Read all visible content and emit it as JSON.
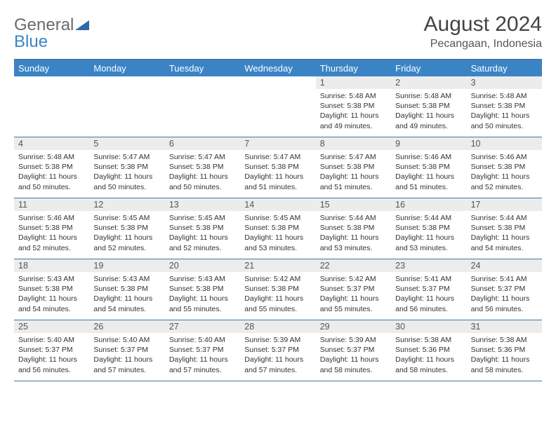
{
  "brand": {
    "general": "General",
    "blue": "Blue"
  },
  "title": "August 2024",
  "subtitle": "Pecangaan, Indonesia",
  "colors": {
    "header_bg": "#3a84c6",
    "header_border": "#3e78a8",
    "daynum_bg": "#ececec",
    "text": "#333333",
    "title_color": "#444444"
  },
  "typography": {
    "title_fontsize": 30,
    "subtitle_fontsize": 16,
    "header_fontsize": 13,
    "body_fontsize": 10.5
  },
  "day_names": [
    "Sunday",
    "Monday",
    "Tuesday",
    "Wednesday",
    "Thursday",
    "Friday",
    "Saturday"
  ],
  "labels": {
    "sunrise": "Sunrise",
    "sunset": "Sunset",
    "daylight": "Daylight"
  },
  "weeks": [
    [
      null,
      null,
      null,
      null,
      {
        "n": "1",
        "sr": "5:48 AM",
        "ss": "5:38 PM",
        "dl": "11 hours and 49 minutes."
      },
      {
        "n": "2",
        "sr": "5:48 AM",
        "ss": "5:38 PM",
        "dl": "11 hours and 49 minutes."
      },
      {
        "n": "3",
        "sr": "5:48 AM",
        "ss": "5:38 PM",
        "dl": "11 hours and 50 minutes."
      }
    ],
    [
      {
        "n": "4",
        "sr": "5:48 AM",
        "ss": "5:38 PM",
        "dl": "11 hours and 50 minutes."
      },
      {
        "n": "5",
        "sr": "5:47 AM",
        "ss": "5:38 PM",
        "dl": "11 hours and 50 minutes."
      },
      {
        "n": "6",
        "sr": "5:47 AM",
        "ss": "5:38 PM",
        "dl": "11 hours and 50 minutes."
      },
      {
        "n": "7",
        "sr": "5:47 AM",
        "ss": "5:38 PM",
        "dl": "11 hours and 51 minutes."
      },
      {
        "n": "8",
        "sr": "5:47 AM",
        "ss": "5:38 PM",
        "dl": "11 hours and 51 minutes."
      },
      {
        "n": "9",
        "sr": "5:46 AM",
        "ss": "5:38 PM",
        "dl": "11 hours and 51 minutes."
      },
      {
        "n": "10",
        "sr": "5:46 AM",
        "ss": "5:38 PM",
        "dl": "11 hours and 52 minutes."
      }
    ],
    [
      {
        "n": "11",
        "sr": "5:46 AM",
        "ss": "5:38 PM",
        "dl": "11 hours and 52 minutes."
      },
      {
        "n": "12",
        "sr": "5:45 AM",
        "ss": "5:38 PM",
        "dl": "11 hours and 52 minutes."
      },
      {
        "n": "13",
        "sr": "5:45 AM",
        "ss": "5:38 PM",
        "dl": "11 hours and 52 minutes."
      },
      {
        "n": "14",
        "sr": "5:45 AM",
        "ss": "5:38 PM",
        "dl": "11 hours and 53 minutes."
      },
      {
        "n": "15",
        "sr": "5:44 AM",
        "ss": "5:38 PM",
        "dl": "11 hours and 53 minutes."
      },
      {
        "n": "16",
        "sr": "5:44 AM",
        "ss": "5:38 PM",
        "dl": "11 hours and 53 minutes."
      },
      {
        "n": "17",
        "sr": "5:44 AM",
        "ss": "5:38 PM",
        "dl": "11 hours and 54 minutes."
      }
    ],
    [
      {
        "n": "18",
        "sr": "5:43 AM",
        "ss": "5:38 PM",
        "dl": "11 hours and 54 minutes."
      },
      {
        "n": "19",
        "sr": "5:43 AM",
        "ss": "5:38 PM",
        "dl": "11 hours and 54 minutes."
      },
      {
        "n": "20",
        "sr": "5:43 AM",
        "ss": "5:38 PM",
        "dl": "11 hours and 55 minutes."
      },
      {
        "n": "21",
        "sr": "5:42 AM",
        "ss": "5:38 PM",
        "dl": "11 hours and 55 minutes."
      },
      {
        "n": "22",
        "sr": "5:42 AM",
        "ss": "5:37 PM",
        "dl": "11 hours and 55 minutes."
      },
      {
        "n": "23",
        "sr": "5:41 AM",
        "ss": "5:37 PM",
        "dl": "11 hours and 56 minutes."
      },
      {
        "n": "24",
        "sr": "5:41 AM",
        "ss": "5:37 PM",
        "dl": "11 hours and 56 minutes."
      }
    ],
    [
      {
        "n": "25",
        "sr": "5:40 AM",
        "ss": "5:37 PM",
        "dl": "11 hours and 56 minutes."
      },
      {
        "n": "26",
        "sr": "5:40 AM",
        "ss": "5:37 PM",
        "dl": "11 hours and 57 minutes."
      },
      {
        "n": "27",
        "sr": "5:40 AM",
        "ss": "5:37 PM",
        "dl": "11 hours and 57 minutes."
      },
      {
        "n": "28",
        "sr": "5:39 AM",
        "ss": "5:37 PM",
        "dl": "11 hours and 57 minutes."
      },
      {
        "n": "29",
        "sr": "5:39 AM",
        "ss": "5:37 PM",
        "dl": "11 hours and 58 minutes."
      },
      {
        "n": "30",
        "sr": "5:38 AM",
        "ss": "5:36 PM",
        "dl": "11 hours and 58 minutes."
      },
      {
        "n": "31",
        "sr": "5:38 AM",
        "ss": "5:36 PM",
        "dl": "11 hours and 58 minutes."
      }
    ]
  ]
}
